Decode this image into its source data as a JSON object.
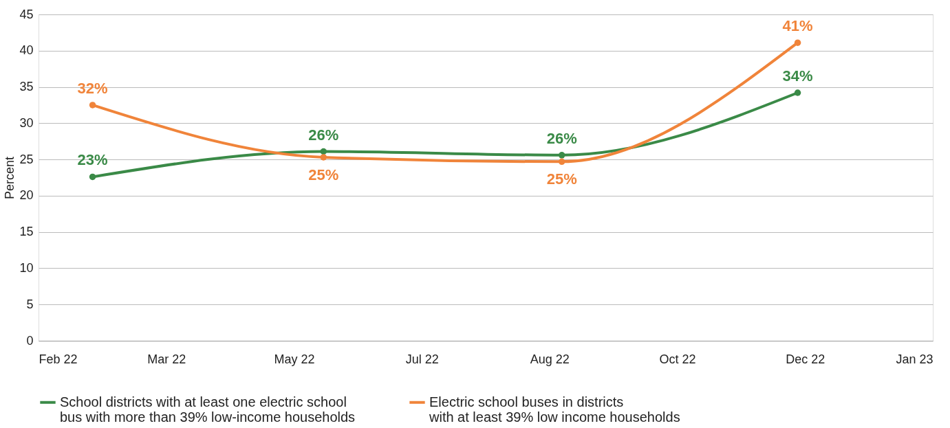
{
  "chart_data": {
    "type": "line",
    "ylabel": "Percent",
    "x": [
      "2022-02-23",
      "2022-05-28",
      "2022-09-02",
      "2022-12-07"
    ],
    "series": [
      {
        "name": "School districts with at least one electric school bus with more than 39% low-income households",
        "color": "#3a8a47",
        "values": [
          22.6,
          26.1,
          25.6,
          34.2
        ],
        "value_labels": [
          "23%",
          "26%",
          "26%",
          "34%"
        ]
      },
      {
        "name": "Electric school buses in districts with at least 39% low income households",
        "color": "#f0843a",
        "values": [
          32.5,
          25.3,
          24.7,
          41.1
        ],
        "value_labels": [
          "32%",
          "25%",
          "25%",
          "41%"
        ]
      }
    ],
    "xlim": [
      "2022-02-01",
      "2023-01-31"
    ],
    "xticks": [
      {
        "value": "2022-02-01",
        "label": "Feb 22"
      },
      {
        "value": "2022-03-25",
        "label": "Mar 22"
      },
      {
        "value": "2022-05-16",
        "label": "May 22"
      },
      {
        "value": "2022-07-07",
        "label": "Jul 22"
      },
      {
        "value": "2022-08-28",
        "label": "Aug 22"
      },
      {
        "value": "2022-10-19",
        "label": "Oct 22"
      },
      {
        "value": "2022-12-10",
        "label": "Dec 22"
      },
      {
        "value": "2023-01-31",
        "label": "Jan 23"
      }
    ],
    "ylim": [
      0,
      45
    ],
    "yticks": [
      0,
      5,
      10,
      15,
      20,
      25,
      30,
      35,
      40,
      45
    ],
    "grid": "y",
    "legend": "bottom",
    "marker": "circle",
    "line_style": "solid"
  }
}
